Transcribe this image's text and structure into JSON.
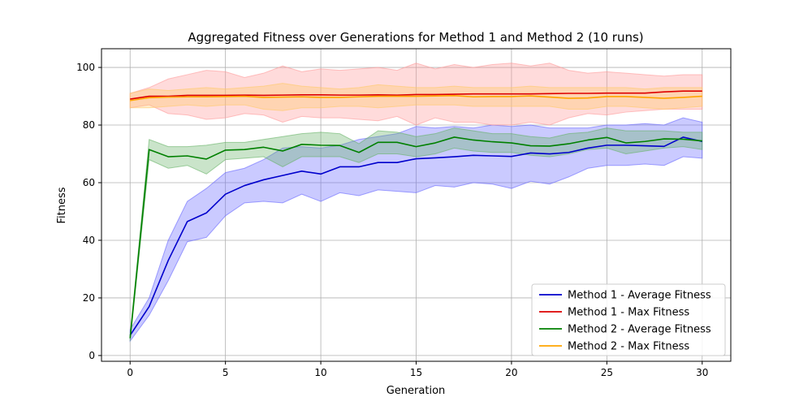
{
  "chart_data": {
    "type": "line",
    "title": "Aggregated Fitness over Generations for Method 1 and Method 2 (10 runs)",
    "xlabel": "Generation",
    "ylabel": "Fitness",
    "xlim": [
      -1.5,
      31.5
    ],
    "ylim": [
      -2,
      106.5
    ],
    "xticks": [
      0,
      5,
      10,
      15,
      20,
      25,
      30
    ],
    "yticks": [
      0,
      20,
      40,
      60,
      80,
      100
    ],
    "grid": true,
    "legend_position": "lower right",
    "x": [
      0,
      1,
      2,
      3,
      4,
      5,
      6,
      7,
      8,
      9,
      10,
      11,
      12,
      13,
      14,
      15,
      16,
      17,
      18,
      19,
      20,
      21,
      22,
      23,
      24,
      25,
      26,
      27,
      28,
      29,
      30
    ],
    "series": [
      {
        "name": "Method 1 - Average Fitness",
        "color": "#0000cc",
        "band_color": "#6666ff",
        "mean": [
          7,
          17,
          33,
          46.5,
          49.5,
          56,
          59,
          61,
          62.5,
          64,
          63,
          65.5,
          65.5,
          67,
          67,
          68.3,
          68.6,
          69,
          69.5,
          69.3,
          69.1,
          70.3,
          70,
          70.5,
          72,
          73,
          73,
          72.8,
          72.6,
          75.8,
          74.3
        ],
        "upper": [
          9,
          20,
          40,
          53.5,
          58,
          63.5,
          65,
          68,
          72,
          72.5,
          72,
          73,
          75,
          76,
          77,
          79.5,
          79,
          79.5,
          79,
          80,
          79.5,
          80,
          79,
          79,
          79,
          80,
          80,
          80.5,
          80,
          82.5,
          81
        ],
        "lower": [
          5,
          14,
          26,
          39.5,
          41,
          48.5,
          53,
          53.5,
          53,
          56,
          53.5,
          56.5,
          55.5,
          57.5,
          57,
          56.5,
          59,
          58.5,
          60,
          59.5,
          58,
          60.5,
          59.5,
          62,
          65,
          66,
          66,
          66.5,
          66,
          69,
          68.5
        ]
      },
      {
        "name": "Method 1 - Max Fitness",
        "color": "#dd0000",
        "band_color": "#ff9999",
        "mean": [
          89,
          90,
          90,
          90.3,
          90.3,
          90.3,
          90.4,
          90.3,
          90.4,
          90.5,
          90.5,
          90.4,
          90.4,
          90.5,
          90.4,
          90.6,
          90.6,
          90.7,
          90.8,
          90.8,
          90.8,
          90.8,
          90.9,
          91,
          91,
          91.1,
          91.1,
          91.1,
          91.5,
          91.8,
          91.8
        ],
        "upper": [
          91,
          93,
          96,
          97.5,
          99,
          98.5,
          96.5,
          98,
          100.5,
          98.5,
          99.5,
          99,
          99.5,
          100,
          99,
          101.5,
          99.5,
          101,
          100,
          101,
          101.5,
          100.5,
          101.5,
          99,
          98,
          98.5,
          98,
          97.5,
          97,
          97.5,
          97.5
        ],
        "lower": [
          86,
          87,
          84,
          83.5,
          82,
          82.5,
          84,
          83.5,
          81,
          83,
          82.5,
          82.5,
          82,
          81.5,
          83,
          80,
          82.5,
          81,
          81,
          80,
          80,
          81,
          80,
          82.5,
          84,
          83.5,
          84.5,
          85,
          85.5,
          85.5,
          85.5
        ]
      },
      {
        "name": "Method 2 - Average Fitness",
        "color": "#008000",
        "band_color": "#66b366",
        "mean": [
          6,
          71.5,
          69,
          69.3,
          68.2,
          71.3,
          71.5,
          72.3,
          71,
          73.3,
          73,
          72.9,
          70.5,
          74,
          74,
          72.5,
          73.8,
          75.8,
          74.8,
          74.2,
          73.8,
          72.8,
          72.7,
          73.5,
          74.8,
          75.7,
          73.8,
          74.3,
          75.2,
          75.1,
          74.5
        ],
        "upper": [
          7,
          75,
          72.5,
          72.5,
          73,
          74,
          74,
          75,
          76,
          77,
          77.5,
          77,
          73.5,
          78,
          77.5,
          76,
          77,
          79,
          78,
          77,
          77,
          76,
          75.5,
          77,
          77.5,
          79,
          78,
          78,
          78,
          77.5,
          77.5
        ],
        "lower": [
          5,
          68,
          65,
          66,
          63,
          68,
          68.5,
          69,
          65.5,
          69,
          69,
          69,
          67,
          70,
          70,
          69,
          70,
          72,
          71,
          70.5,
          70.5,
          69.5,
          69,
          70,
          71.5,
          72,
          70,
          71,
          72,
          72.5,
          71.5
        ]
      },
      {
        "name": "Method 2 - Max Fitness",
        "color": "#ffa500",
        "band_color": "#ffc966",
        "mean": [
          88.5,
          89.5,
          89.7,
          89.8,
          89.8,
          89.9,
          90,
          89.6,
          89.7,
          89.8,
          89.6,
          89.6,
          89.8,
          90,
          90,
          90,
          90.1,
          90.2,
          89.8,
          89.9,
          89.9,
          90.1,
          89.7,
          89.3,
          89.4,
          89.9,
          89.9,
          89.6,
          89.3,
          89.6,
          90
        ],
        "upper": [
          91,
          92.5,
          92,
          92.5,
          93,
          92.5,
          93,
          93.5,
          94.5,
          93.5,
          93,
          92.5,
          93,
          94,
          93.5,
          93,
          93,
          93.5,
          93,
          93,
          93,
          93.5,
          93,
          93,
          93,
          93,
          93,
          92.5,
          93,
          93,
          93
        ],
        "lower": [
          86,
          86,
          86.5,
          87,
          86.5,
          87,
          87,
          85.5,
          85,
          86,
          86,
          86.5,
          86.5,
          86,
          86.5,
          87,
          87,
          87,
          86.5,
          86.5,
          86.5,
          86.5,
          86.5,
          85.5,
          85.5,
          86.5,
          86.5,
          86,
          85.5,
          86,
          86.5
        ]
      }
    ]
  }
}
